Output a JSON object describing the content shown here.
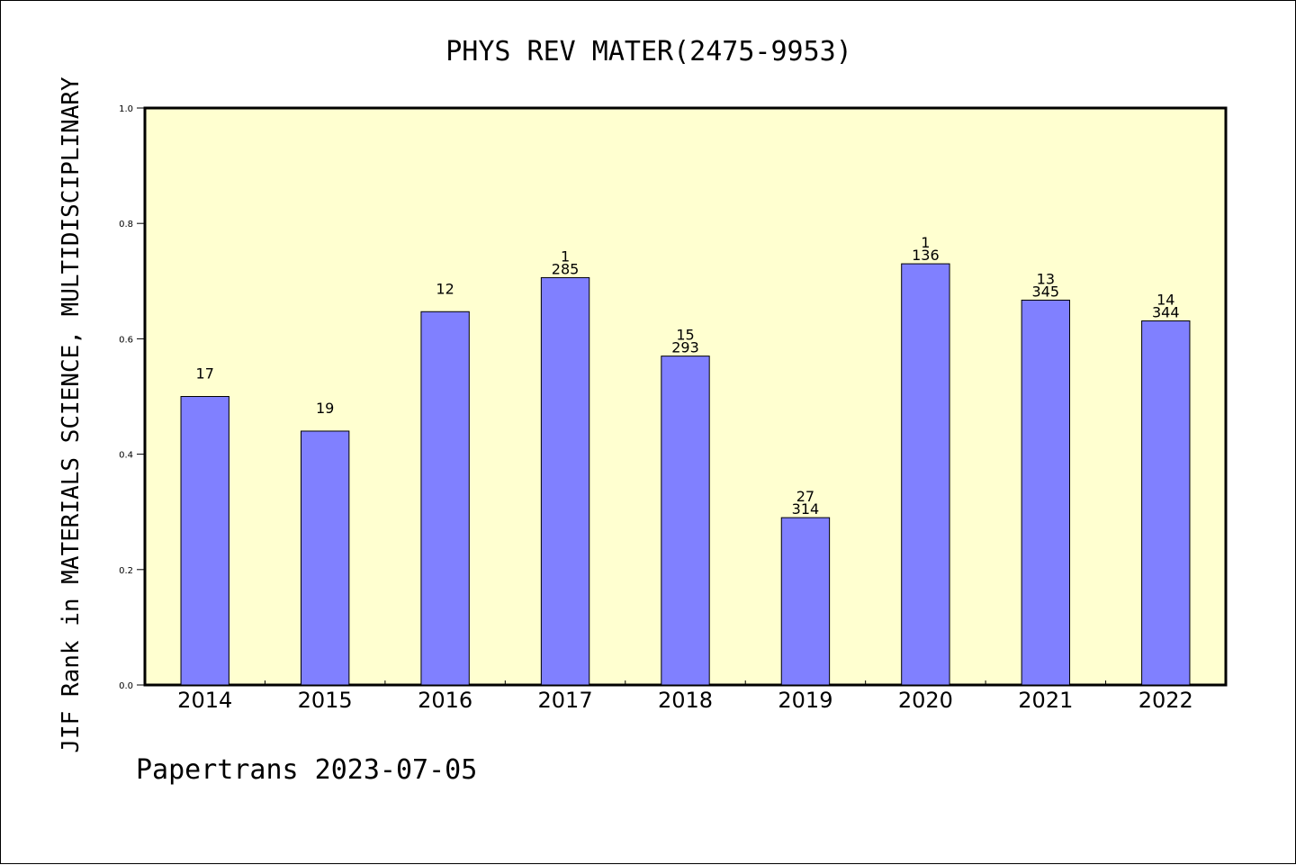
{
  "colors": {
    "plot_background": "#ffffd0",
    "bar_fill": "#8080ff",
    "bar_stroke": "#000000",
    "axis": "#000000"
  },
  "footer": "Papertrans 2023-07-05",
  "chart_data": {
    "type": "bar",
    "title": "PHYS REV MATER(2475-9953)",
    "xlabel": "",
    "ylabel": "JIF Rank in MATERIALS SCIENCE, MULTIDISCIPLINARY",
    "ylim": [
      0,
      1.0
    ],
    "yticks": [
      "0.0",
      "0.2",
      "0.4",
      "0.6",
      "0.8",
      "1.0"
    ],
    "grid": false,
    "categories": [
      "2014",
      "2015",
      "2016",
      "2017",
      "2018",
      "2019",
      "2020",
      "2021",
      "2022"
    ],
    "values": [
      0.5,
      0.44,
      0.647,
      0.706,
      0.57,
      0.29,
      0.73,
      0.667,
      0.631
    ],
    "labels": [
      [
        "17"
      ],
      [
        "19"
      ],
      [
        "12"
      ],
      [
        "1",
        "285"
      ],
      [
        "15",
        "293"
      ],
      [
        "27",
        "314"
      ],
      [
        "1",
        "136"
      ],
      [
        "13",
        "345"
      ],
      [
        "14",
        "344"
      ]
    ]
  }
}
